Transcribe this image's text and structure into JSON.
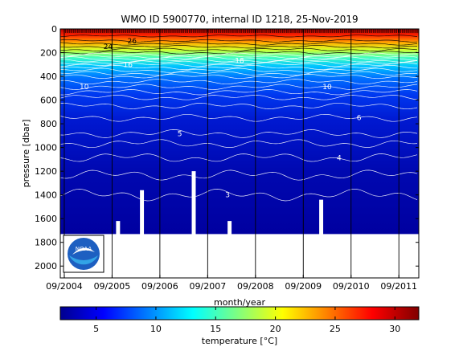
{
  "chart_data": {
    "type": "heatmap",
    "title": "WMO ID 5900770, internal ID 1218, 25-Nov-2019",
    "xlabel": "month/year",
    "ylabel": "pressure [dbar]",
    "x_tick_labels": [
      "09/2004",
      "09/2005",
      "09/2006",
      "09/2007",
      "09/2008",
      "09/2009",
      "09/2010",
      "09/2011"
    ],
    "x_range": [
      "2004-08",
      "2012-02"
    ],
    "y_ticks": [
      0,
      200,
      400,
      600,
      800,
      1000,
      1200,
      1400,
      1600,
      1800,
      2000
    ],
    "y_range": [
      0,
      2100
    ],
    "y_reversed": true,
    "grid": false,
    "colorbar": {
      "label": "temperature [°C]",
      "range": [
        2,
        32
      ],
      "ticks": [
        5,
        10,
        15,
        20,
        25,
        30
      ],
      "colormap": "jet"
    },
    "contour_labels": [
      "26",
      "24",
      "18",
      "16",
      "10",
      "5",
      "3",
      "6",
      "4",
      "10"
    ],
    "typical_temperature_profile": {
      "pressure": [
        0,
        100,
        200,
        300,
        400,
        600,
        800,
        1000,
        1200,
        1400,
        1700
      ],
      "temperature": [
        28.5,
        26,
        22,
        16,
        12,
        7.5,
        5.5,
        4.3,
        3.6,
        3.0,
        2.5
      ]
    },
    "profile_bottom_pressure": 1730,
    "data_gaps_pressure": [
      {
        "from": "2005-10",
        "to": "2005-11",
        "bottom": 1620
      },
      {
        "from": "2006-04",
        "to": "2006-05",
        "bottom": 1360
      },
      {
        "from": "2007-05",
        "to": "2007-06",
        "bottom": 1200
      },
      {
        "from": "2008-02",
        "to": "2008-03",
        "bottom": 1620
      },
      {
        "from": "2010-01",
        "to": "2010-02",
        "bottom": 1440
      }
    ]
  },
  "logo": {
    "text": "NOAA",
    "colors": {
      "sky": "#1d5fc1",
      "sea": "#32a4e6",
      "bird": "#ffffff"
    }
  },
  "colors": {
    "background": "#ffffff",
    "axis": "#000000",
    "contour": "#ffffff"
  }
}
